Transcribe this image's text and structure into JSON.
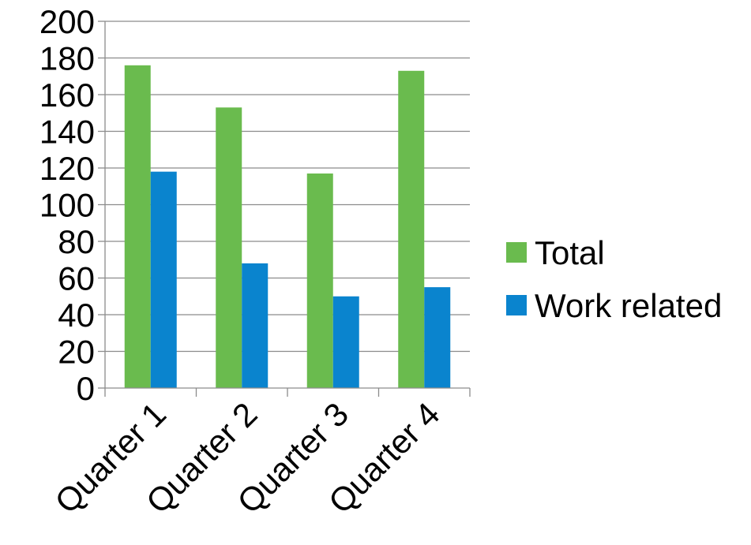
{
  "chart_data": {
    "type": "bar",
    "categories": [
      "Quarter 1",
      "Quarter 2",
      "Quarter 3",
      "Quarter 4"
    ],
    "series": [
      {
        "name": "Total",
        "values": [
          176,
          153,
          117,
          173
        ],
        "color": "#6ABB4E"
      },
      {
        "name": "Work related",
        "values": [
          118,
          68,
          50,
          55
        ],
        "color": "#0A84CE"
      }
    ],
    "title": "",
    "xlabel": "",
    "ylabel": "",
    "ylim": [
      0,
      200
    ],
    "yticks": [
      "0",
      "20",
      "40",
      "60",
      "80",
      "100",
      "120",
      "140",
      "160",
      "180",
      "200"
    ],
    "grid": true,
    "legend_position": "right"
  }
}
